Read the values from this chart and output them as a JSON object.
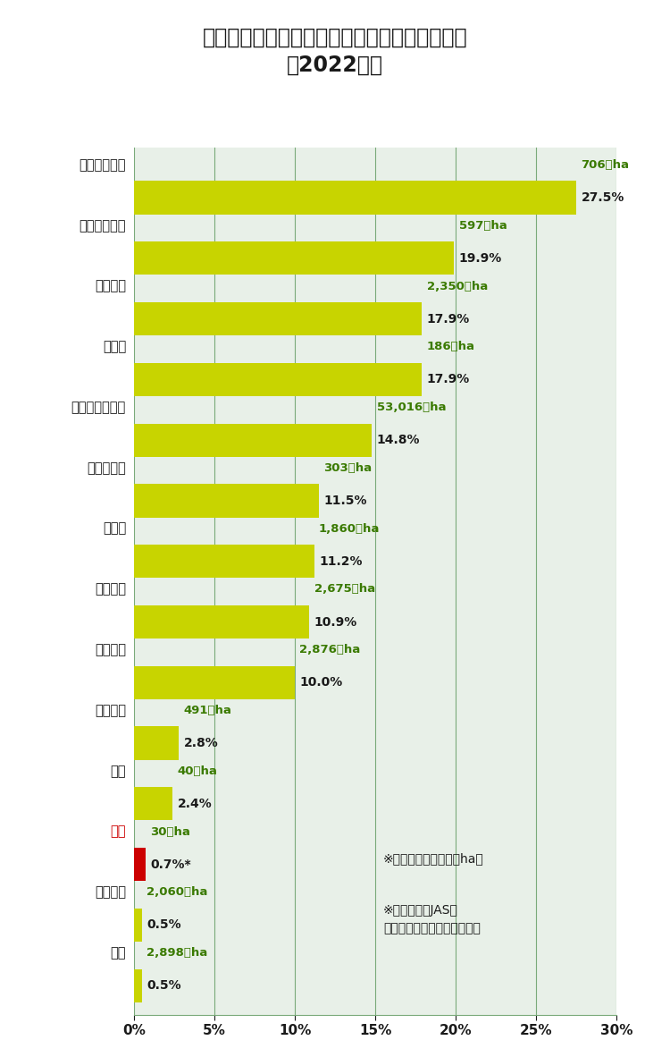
{
  "title": "耕地面積に対する有機農業取組面積と面積割合\n（2022年）",
  "title_fontsize": 17,
  "background_color": "#ffffff",
  "plot_bg_color": "#e8f0e8",
  "bar_color": "#c8d400",
  "japan_bar_color": "#cc0000",
  "text_color_dark": "#1a1a1a",
  "text_color_country": "#1a1a1a",
  "text_color_green": "#3a7a00",
  "text_color_red": "#cc0000",
  "grid_color": "#7aaa7a",
  "countries": [
    "オーストリア",
    "スウェーデン",
    "イタリア",
    "スイス",
    "オーストラリア",
    "デンマーク",
    "ドイツ",
    "スペイン",
    "フランス",
    "イギリス",
    "韓国",
    "日本",
    "アメリカ",
    "中国"
  ],
  "values": [
    27.5,
    19.9,
    17.9,
    17.9,
    14.8,
    11.5,
    11.2,
    10.9,
    10.0,
    2.8,
    2.4,
    0.7,
    0.5,
    0.5
  ],
  "areas": [
    "706千ha",
    "597千ha",
    "2,350千ha",
    "186千ha",
    "53,016千ha",
    "303千ha",
    "1,860千ha",
    "2,675千ha",
    "2,876千ha",
    "491千ha",
    "40千ha",
    "30千ha",
    "2,060千ha",
    "2,898千ha"
  ],
  "pct_labels": [
    "27.5%",
    "19.9%",
    "17.9%",
    "17.9%",
    "14.8%",
    "11.5%",
    "11.2%",
    "10.9%",
    "10.0%",
    "2.8%",
    "2.4%",
    "0.7%*",
    "0.5%",
    "0.5%"
  ],
  "xlim": [
    0,
    30
  ],
  "xticks": [
    0,
    5,
    10,
    15,
    20,
    25,
    30
  ],
  "xtick_labels": [
    "0%",
    "5%",
    "10%",
    "15%",
    "20%",
    "25%",
    "30%"
  ],
  "note1": "※緑字が取組面積（千ha）",
  "note2": "※日本は有機JASを\n　取得している面積のみ計上"
}
